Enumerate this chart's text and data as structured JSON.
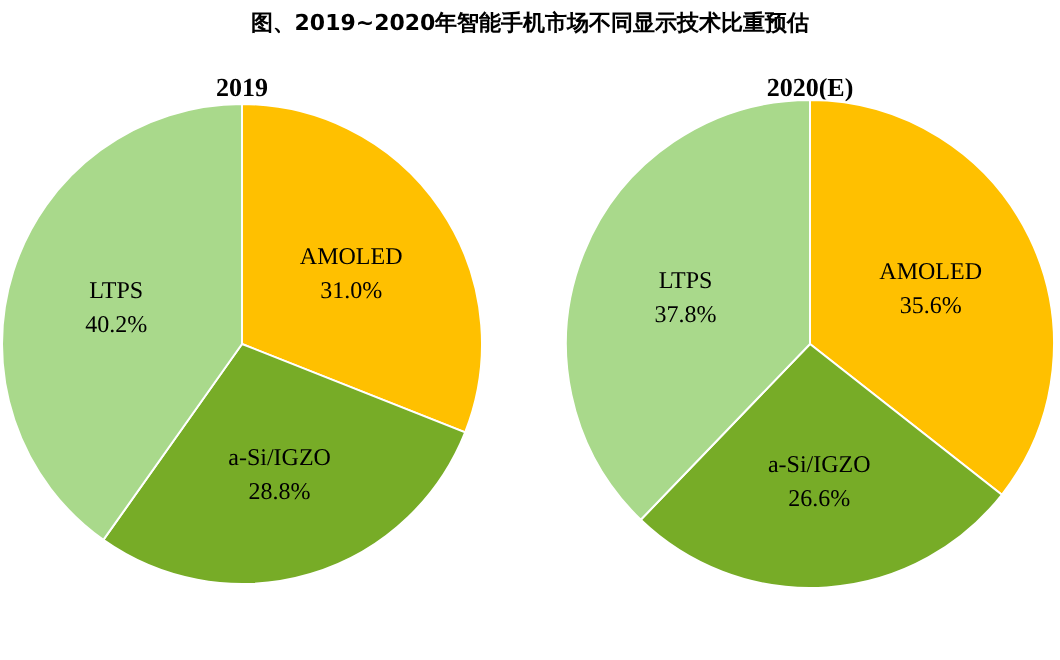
{
  "chart_data": [
    {
      "type": "pie",
      "title": "图、2019~2020年智能手机市场不同显示技术比重预估",
      "subtitle": "2019",
      "categories": [
        "AMOLED",
        "a-Si/IGZO",
        "LTPS"
      ],
      "values": [
        31.0,
        28.8,
        40.2
      ],
      "value_labels": [
        "31.0%",
        "28.8%",
        "40.2%"
      ],
      "colors": [
        "#ffc000",
        "#77ac27",
        "#a9d98b"
      ]
    },
    {
      "type": "pie",
      "title": "2020(E)",
      "categories": [
        "AMOLED",
        "a-Si/IGZO",
        "LTPS"
      ],
      "values": [
        35.6,
        26.6,
        37.8
      ],
      "value_labels": [
        "35.6%",
        "26.6%",
        "37.8%"
      ],
      "colors": [
        "#ffc000",
        "#77ac27",
        "#a9d98b"
      ]
    }
  ]
}
